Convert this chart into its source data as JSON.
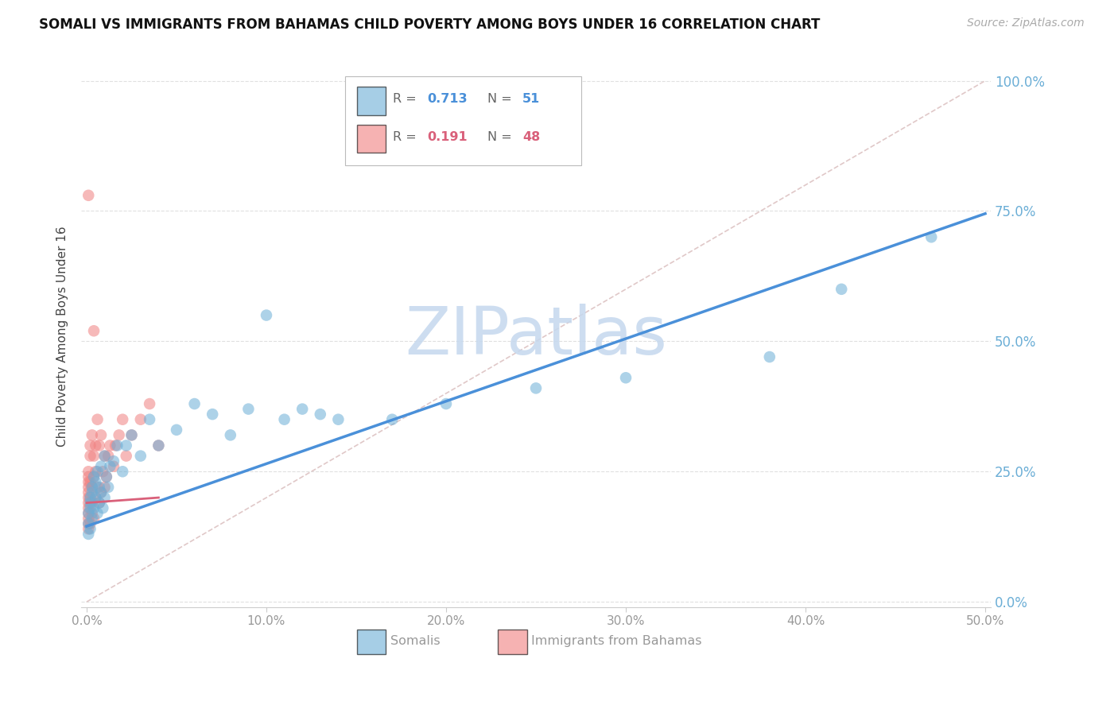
{
  "title": "SOMALI VS IMMIGRANTS FROM BAHAMAS CHILD POVERTY AMONG BOYS UNDER 16 CORRELATION CHART",
  "source": "Source: ZipAtlas.com",
  "ylabel": "Child Poverty Among Boys Under 16",
  "xlim": [
    0.0,
    0.5
  ],
  "ylim": [
    0.0,
    1.0
  ],
  "xtick_vals": [
    0.0,
    0.1,
    0.2,
    0.3,
    0.4,
    0.5
  ],
  "xtick_labels": [
    "0.0%",
    "10.0%",
    "20.0%",
    "30.0%",
    "40.0%",
    "50.0%"
  ],
  "ytick_vals": [
    0.0,
    0.25,
    0.5,
    0.75,
    1.0
  ],
  "ytick_labels": [
    "0.0%",
    "25.0%",
    "50.0%",
    "75.0%",
    "100.0%"
  ],
  "somali_color": "#6BAED6",
  "bahamas_color": "#F08080",
  "blue_line_color": "#4A90D9",
  "pink_line_color": "#D9607A",
  "diag_line_color": "#E0C8C8",
  "watermark_color": "#C5D8EE",
  "background_color": "#FFFFFF",
  "grid_color": "#E0E0E0",
  "right_axis_color": "#6BAED6",
  "somali_R": 0.713,
  "somali_N": 51,
  "bahamas_R": 0.191,
  "bahamas_N": 48,
  "blue_slope": 1.2,
  "blue_intercept": 0.145,
  "pink_slope": 0.25,
  "pink_intercept": 0.19,
  "somali_x": [
    0.001,
    0.001,
    0.001,
    0.002,
    0.002,
    0.002,
    0.002,
    0.003,
    0.003,
    0.003,
    0.004,
    0.004,
    0.005,
    0.005,
    0.006,
    0.006,
    0.007,
    0.007,
    0.008,
    0.008,
    0.009,
    0.01,
    0.01,
    0.011,
    0.012,
    0.013,
    0.015,
    0.017,
    0.02,
    0.022,
    0.025,
    0.03,
    0.035,
    0.04,
    0.05,
    0.06,
    0.07,
    0.08,
    0.09,
    0.1,
    0.11,
    0.12,
    0.13,
    0.14,
    0.17,
    0.2,
    0.25,
    0.3,
    0.38,
    0.42,
    0.47
  ],
  "somali_y": [
    0.13,
    0.15,
    0.17,
    0.19,
    0.2,
    0.14,
    0.18,
    0.22,
    0.16,
    0.21,
    0.18,
    0.24,
    0.2,
    0.23,
    0.17,
    0.25,
    0.19,
    0.22,
    0.21,
    0.26,
    0.18,
    0.2,
    0.28,
    0.24,
    0.22,
    0.26,
    0.27,
    0.3,
    0.25,
    0.3,
    0.32,
    0.28,
    0.35,
    0.3,
    0.33,
    0.38,
    0.36,
    0.32,
    0.37,
    0.55,
    0.35,
    0.37,
    0.36,
    0.35,
    0.35,
    0.38,
    0.41,
    0.43,
    0.47,
    0.6,
    0.7
  ],
  "bahamas_x": [
    0.001,
    0.001,
    0.001,
    0.001,
    0.001,
    0.001,
    0.001,
    0.001,
    0.001,
    0.001,
    0.001,
    0.001,
    0.002,
    0.002,
    0.002,
    0.002,
    0.002,
    0.003,
    0.003,
    0.003,
    0.003,
    0.004,
    0.004,
    0.004,
    0.005,
    0.005,
    0.005,
    0.006,
    0.006,
    0.007,
    0.007,
    0.008,
    0.008,
    0.009,
    0.01,
    0.01,
    0.011,
    0.012,
    0.013,
    0.015,
    0.016,
    0.018,
    0.02,
    0.022,
    0.025,
    0.03,
    0.035,
    0.04
  ],
  "bahamas_y": [
    0.14,
    0.15,
    0.16,
    0.17,
    0.18,
    0.19,
    0.2,
    0.21,
    0.22,
    0.23,
    0.24,
    0.25,
    0.15,
    0.2,
    0.23,
    0.28,
    0.3,
    0.17,
    0.19,
    0.22,
    0.32,
    0.16,
    0.24,
    0.28,
    0.2,
    0.25,
    0.3,
    0.22,
    0.35,
    0.19,
    0.3,
    0.21,
    0.32,
    0.25,
    0.22,
    0.28,
    0.24,
    0.28,
    0.3,
    0.26,
    0.3,
    0.32,
    0.35,
    0.28,
    0.32,
    0.35,
    0.38,
    0.3
  ],
  "bahamas_outlier_x": [
    0.001
  ],
  "bahamas_outlier_y": [
    0.78
  ],
  "bahamas_outlier2_x": [
    0.004
  ],
  "bahamas_outlier2_y": [
    0.52
  ]
}
